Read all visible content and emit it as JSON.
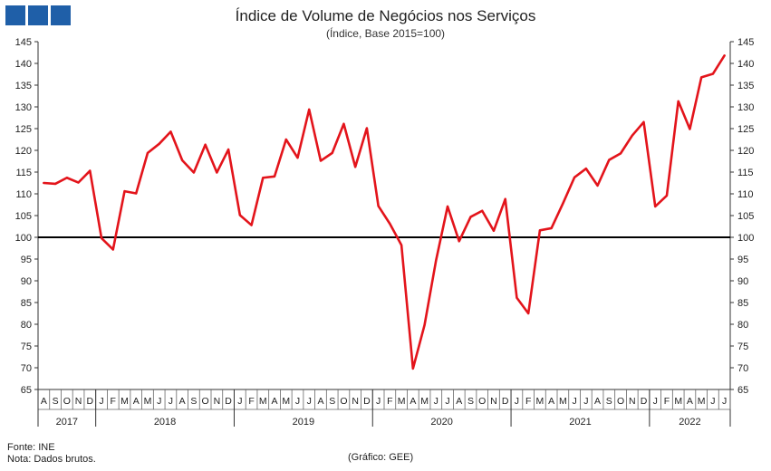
{
  "header": {
    "title": "Índice de Volume de Negócios nos Serviços",
    "subtitle": "(Índice, Base 2015=100)"
  },
  "footer": {
    "source": "Fonte: INE",
    "note": "Nota: Dados brutos.",
    "credit": "(Gráfico: GEE)"
  },
  "colors": {
    "series": "#e3141b",
    "reference": "#000000",
    "logo": "#1f5fa8"
  },
  "chart_data": {
    "type": "line",
    "title": "Índice de Volume de Negócios nos Serviços",
    "subtitle": "(Índice, Base 2015=100)",
    "ylim": [
      65,
      145
    ],
    "yticks": [
      65,
      70,
      75,
      80,
      85,
      90,
      95,
      100,
      105,
      110,
      115,
      120,
      125,
      130,
      135,
      140,
      145
    ],
    "y_axes": "left-and-right",
    "grid": false,
    "reference_line": 100,
    "months": [
      "A",
      "S",
      "O",
      "N",
      "D",
      "J",
      "F",
      "M",
      "A",
      "M",
      "J",
      "J",
      "A",
      "S",
      "O",
      "N",
      "D",
      "J",
      "F",
      "M",
      "A",
      "M",
      "J",
      "J",
      "A",
      "S",
      "O",
      "N",
      "D",
      "J",
      "F",
      "M",
      "A",
      "M",
      "J",
      "J",
      "A",
      "S",
      "O",
      "N",
      "D",
      "J",
      "F",
      "M",
      "A",
      "M",
      "J",
      "J",
      "A",
      "S",
      "O",
      "N",
      "D",
      "J",
      "F",
      "M",
      "A",
      "M",
      "J",
      "J"
    ],
    "years": [
      {
        "label": "2017",
        "months": 5
      },
      {
        "label": "2018",
        "months": 12
      },
      {
        "label": "2019",
        "months": 12
      },
      {
        "label": "2020",
        "months": 12
      },
      {
        "label": "2021",
        "months": 12
      },
      {
        "label": "2022",
        "months": 7
      }
    ],
    "series": [
      {
        "values": [
          112.5,
          112.3,
          113.7,
          112.6,
          115.3,
          99.8,
          97.2,
          110.6,
          110.1,
          119.4,
          121.5,
          124.3,
          117.7,
          114.9,
          121.3,
          114.9,
          120.2,
          105.1,
          102.8,
          113.7,
          114.0,
          122.5,
          118.3,
          129.4,
          117.6,
          119.4,
          126.1,
          116.2,
          125.1,
          107.2,
          103.1,
          98.2,
          69.8,
          79.8,
          94.7,
          107.1,
          99.1,
          104.7,
          106.1,
          101.5,
          108.8,
          86.1,
          82.5,
          101.6,
          102.1,
          107.8,
          113.8,
          115.8,
          111.9,
          117.8,
          119.3,
          123.4,
          126.5,
          107.1,
          109.6,
          131.3,
          124.9,
          136.8,
          137.6,
          141.8
        ]
      }
    ]
  }
}
